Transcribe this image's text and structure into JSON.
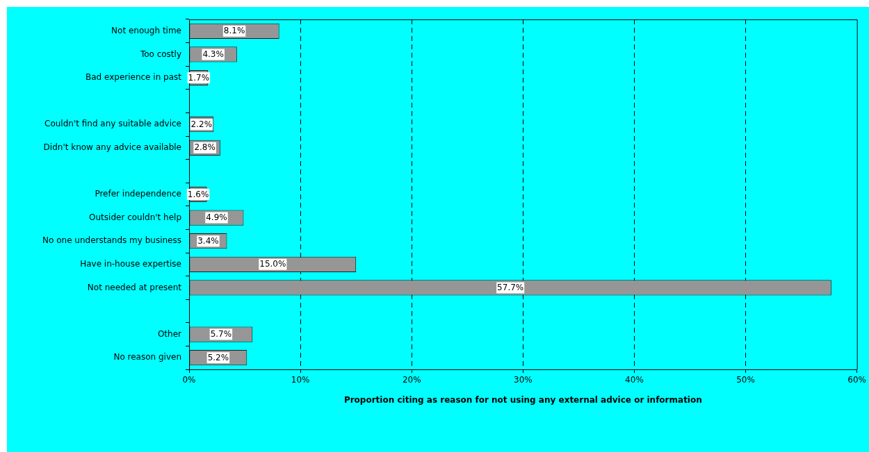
{
  "chart_data": {
    "type": "bar",
    "orientation": "horizontal",
    "xlabel": "Proportion citing as reason for not using any external advice or information",
    "categories": [
      "Not enough time",
      "Too costly",
      "Bad experience in past",
      null,
      "Couldn't find any suitable advice",
      "Didn't know any advice available",
      null,
      "Prefer independence",
      "Outsider couldn't help",
      "No one understands my business",
      "Have in-house expertise",
      "Not needed at present",
      null,
      "Other",
      "No reason given"
    ],
    "values": [
      8.1,
      4.3,
      1.7,
      null,
      2.2,
      2.8,
      null,
      1.6,
      4.9,
      3.4,
      15.0,
      57.7,
      null,
      5.7,
      5.2
    ],
    "value_labels": [
      "8.1%",
      "4.3%",
      "1.7%",
      null,
      "2.2%",
      "2.8%",
      null,
      "1.6%",
      "4.9%",
      "3.4%",
      "15.0%",
      "57.7%",
      null,
      "5.7%",
      "5.2%"
    ],
    "color": "#969696",
    "xlim": [
      0,
      60
    ],
    "xticks": [
      {
        "value": 0,
        "label": "0%"
      },
      {
        "value": 10,
        "label": "10%"
      },
      {
        "value": 20,
        "label": "20%"
      },
      {
        "value": 30,
        "label": "30%"
      },
      {
        "value": 40,
        "label": "40%"
      },
      {
        "value": 50,
        "label": "50%"
      },
      {
        "value": 60,
        "label": "60%"
      }
    ],
    "grid": "x",
    "legend": false
  }
}
